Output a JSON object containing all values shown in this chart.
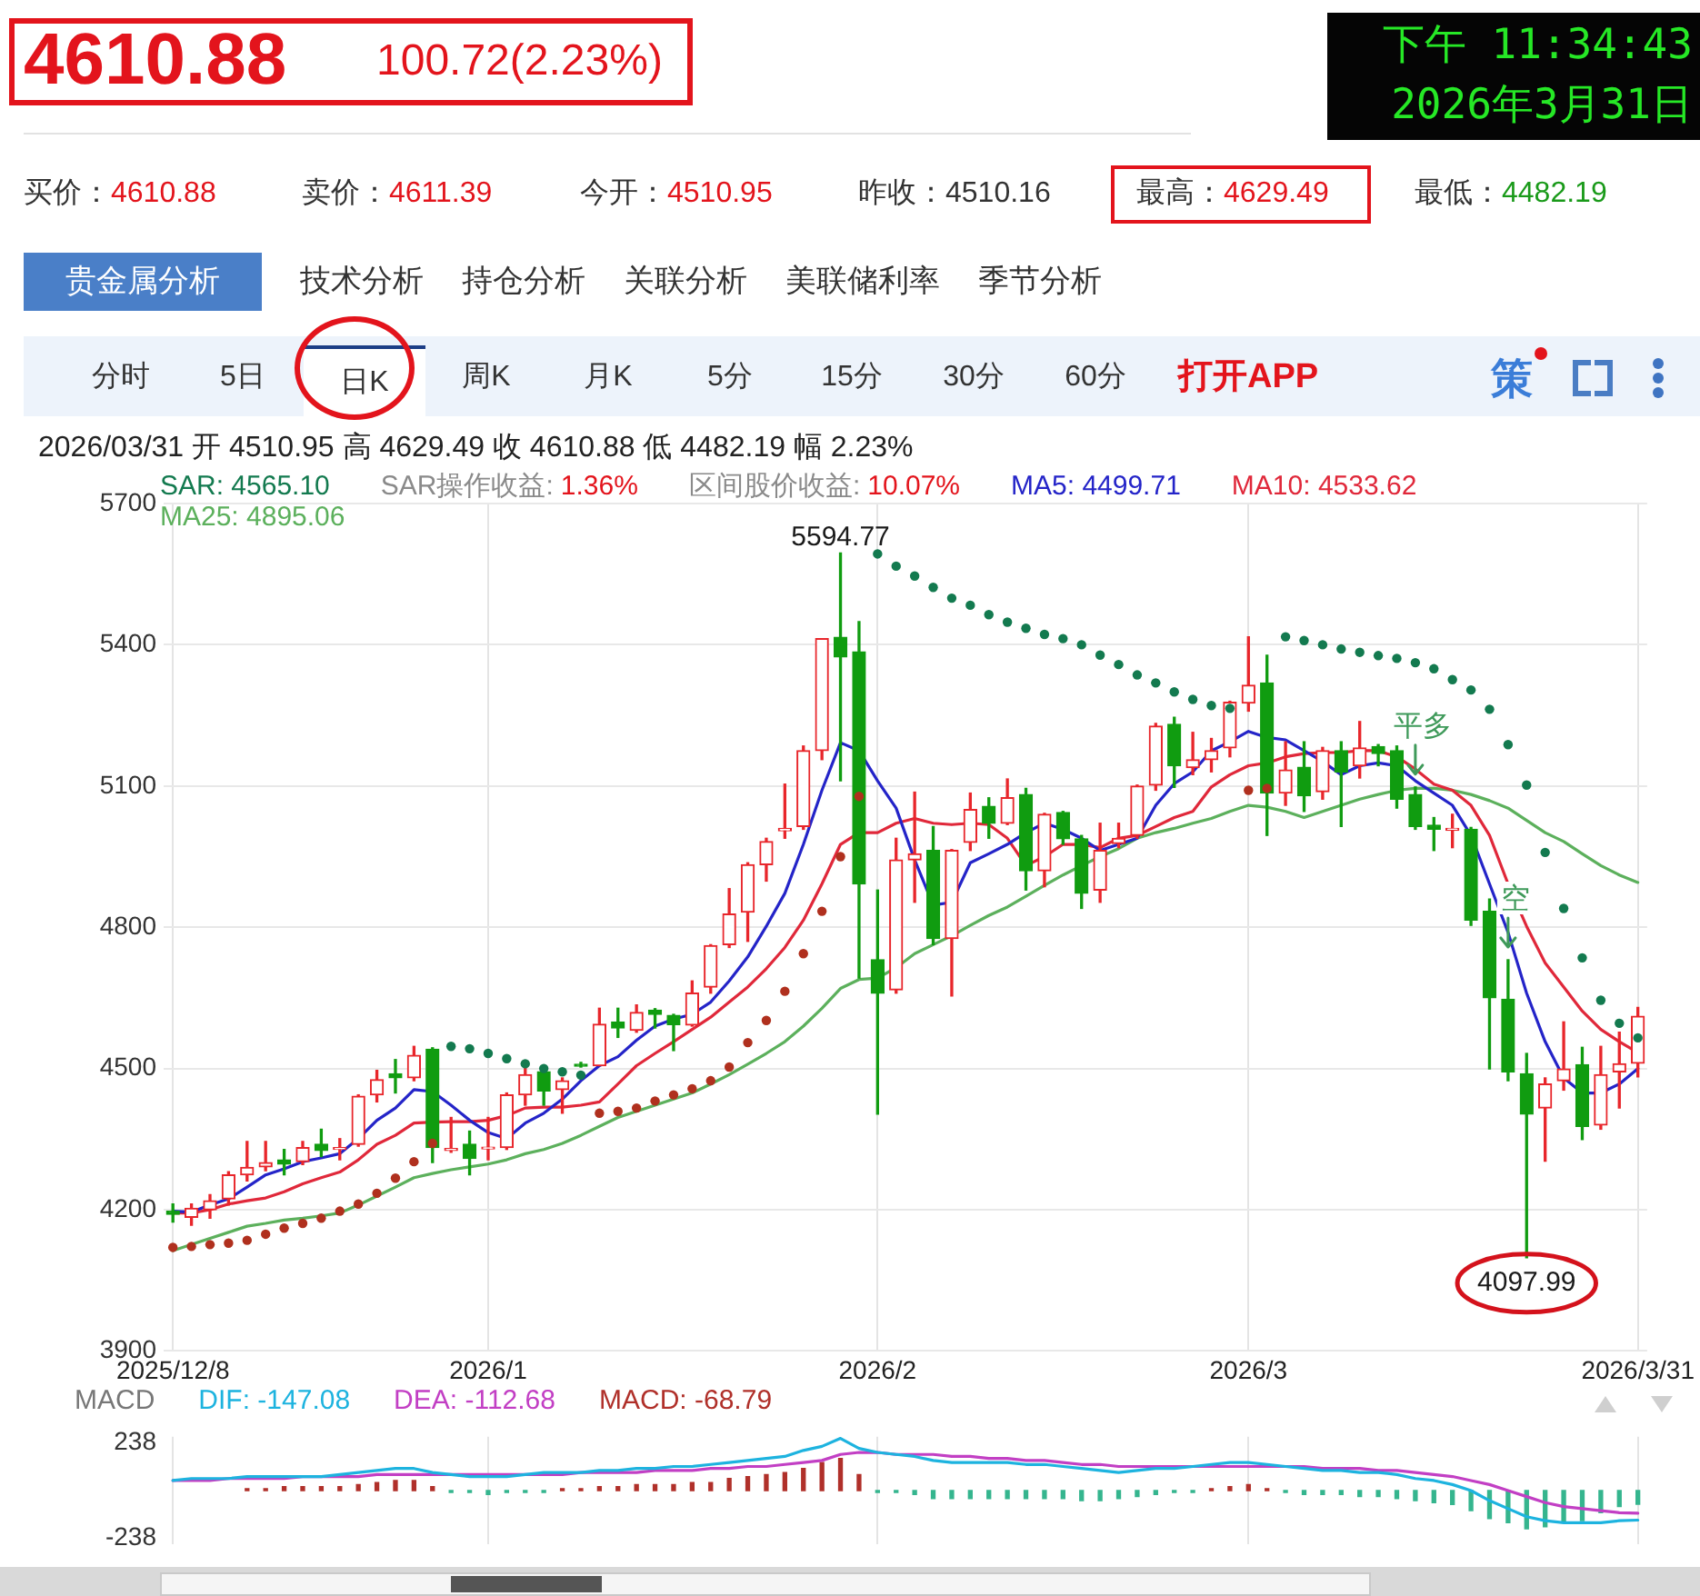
{
  "chart_data": [
    {
      "type": "other",
      "title": "4610.88",
      "subtitle": "100.72(2.23%)",
      "annotations": [
        "下午 11:34:43",
        "2026年3月31日"
      ]
    },
    {
      "type": "other",
      "annotations": [
        "买价：",
        "4610.88",
        "卖价：",
        "4611.39",
        "今开：",
        "4510.95",
        "昨收：",
        "4510.16",
        "最高：",
        "4629.49",
        "最低：",
        "4482.19"
      ],
      "colors": [
        "#e3141c",
        "#e3141c",
        "#e3141c",
        "#333333",
        "#e3141c",
        "#1a9a1a"
      ]
    },
    {
      "type": "other",
      "annotations": [
        "贵金属分析",
        "技术分析",
        "持仓分析",
        "关联分析",
        "美联储利率",
        "季节分析"
      ]
    },
    {
      "type": "other",
      "annotations": [
        "分时",
        "5日",
        "日K",
        "周K",
        "月K",
        "5分",
        "15分",
        "30分",
        "60分",
        "打开APP",
        "策"
      ]
    },
    {
      "type": "candlestick",
      "title": "2026/03/31 开 4510.95 高 4629.49 收 4610.88 低 4482.19 幅 2.23%",
      "categories": [
        "2025/12/8",
        null,
        null,
        null,
        null,
        null,
        null,
        null,
        null,
        null,
        null,
        null,
        null,
        null,
        null,
        null,
        null,
        "2026/1",
        null,
        null,
        null,
        null,
        null,
        null,
        null,
        null,
        null,
        null,
        null,
        null,
        null,
        null,
        null,
        null,
        null,
        null,
        null,
        null,
        "2026/2",
        null,
        null,
        null,
        null,
        null,
        null,
        null,
        null,
        null,
        null,
        null,
        null,
        null,
        null,
        null,
        null,
        null,
        null,
        null,
        "2026/3",
        null,
        null,
        null,
        null,
        null,
        null,
        null,
        null,
        null,
        null,
        null,
        null,
        null,
        null,
        null,
        null,
        null,
        null,
        null,
        null,
        "2026/3/31"
      ],
      "ohlc": [
        [
          4197,
          4212,
          4174,
          4190
        ],
        [
          4184,
          4212,
          4167,
          4203
        ],
        [
          4200,
          4232,
          4182,
          4219
        ],
        [
          4223,
          4281,
          4210,
          4274
        ],
        [
          4274,
          4345,
          4261,
          4290
        ],
        [
          4291,
          4345,
          4283,
          4300
        ],
        [
          4306,
          4328,
          4274,
          4297
        ],
        [
          4302,
          4345,
          4296,
          4332
        ],
        [
          4339,
          4371,
          4313,
          4326
        ],
        [
          4328,
          4351,
          4306,
          4332
        ],
        [
          4339,
          4444,
          4335,
          4441
        ],
        [
          4444,
          4496,
          4429,
          4476
        ],
        [
          4489,
          4519,
          4448,
          4480
        ],
        [
          4480,
          4547,
          4474,
          4528
        ],
        [
          4541,
          4544,
          4300,
          4332
        ],
        [
          4326,
          4396,
          4322,
          4330
        ],
        [
          4339,
          4367,
          4274,
          4309
        ],
        [
          4329,
          4396,
          4306,
          4333
        ],
        [
          4332,
          4448,
          4328,
          4444
        ],
        [
          4444,
          4500,
          4422,
          4487
        ],
        [
          4493,
          4500,
          4422,
          4452
        ],
        [
          4455,
          4480,
          4405,
          4474
        ],
        [
          4509,
          4513,
          4503,
          4505
        ],
        [
          4506,
          4628,
          4506,
          4594
        ],
        [
          4599,
          4628,
          4566,
          4586
        ],
        [
          4581,
          4635,
          4577,
          4619
        ],
        [
          4624,
          4627,
          4586,
          4615
        ],
        [
          4613,
          4615,
          4538,
          4593
        ],
        [
          4592,
          4686,
          4590,
          4660
        ],
        [
          4673,
          4763,
          4660,
          4761
        ],
        [
          4763,
          4882,
          4757,
          4828
        ],
        [
          4832,
          4937,
          4770,
          4933
        ],
        [
          4933,
          4989,
          4898,
          4982
        ],
        [
          5005,
          5104,
          4989,
          5010
        ],
        [
          5014,
          5185,
          5008,
          5175
        ],
        [
          5175,
          5413,
          5156,
          5413
        ],
        [
          5416,
          5594.77,
          5111,
          5374
        ],
        [
          5385,
          5449,
          4692,
          4892
        ],
        [
          4731,
          4879,
          4403,
          4660
        ],
        [
          4667,
          4989,
          4660,
          4943
        ],
        [
          4943,
          5087,
          4853,
          4956
        ],
        [
          4963,
          5014,
          4763,
          4776
        ],
        [
          4776,
          4965,
          4654,
          4963
        ],
        [
          4980,
          5085,
          4963,
          5050
        ],
        [
          5057,
          5075,
          4989,
          5021
        ],
        [
          5021,
          5115,
          5018,
          5075
        ],
        [
          5082,
          5095,
          4879,
          4920
        ],
        [
          4920,
          5042,
          4886,
          5040
        ],
        [
          5044,
          5046,
          4976,
          4988
        ],
        [
          4988,
          4995,
          4840,
          4872
        ],
        [
          4879,
          5021,
          4853,
          4963
        ],
        [
          4978,
          5021,
          4969,
          4989
        ],
        [
          4995,
          5102,
          4989,
          5100
        ],
        [
          5102,
          5233,
          5091,
          5227
        ],
        [
          5231,
          5246,
          5097,
          5143
        ],
        [
          5139,
          5214,
          5124,
          5156
        ],
        [
          5156,
          5201,
          5130,
          5175
        ],
        [
          5181,
          5280,
          5162,
          5278
        ],
        [
          5276,
          5417,
          5259,
          5314
        ],
        [
          5319,
          5378,
          4995,
          5085
        ],
        [
          5085,
          5194,
          5059,
          5134
        ],
        [
          5140,
          5194,
          5046,
          5079
        ],
        [
          5088,
          5182,
          5072,
          5175
        ],
        [
          5175,
          5194,
          5014,
          5130
        ],
        [
          5143,
          5237,
          5117,
          5181
        ],
        [
          5184,
          5188,
          5143,
          5169
        ],
        [
          5175,
          5185,
          5053,
          5072
        ],
        [
          5082,
          5098,
          5008,
          5014
        ],
        [
          5017,
          5033,
          4963,
          5008
        ],
        [
          5006,
          5040,
          4969,
          5010
        ],
        [
          5008,
          5012,
          4804,
          4815
        ],
        [
          4834,
          4860,
          4499,
          4650
        ],
        [
          4647,
          4731,
          4474,
          4493
        ],
        [
          4489,
          4532,
          4097.99,
          4403
        ],
        [
          4416,
          4480,
          4303,
          4467
        ],
        [
          4474,
          4599,
          4454,
          4499
        ],
        [
          4508,
          4545,
          4349,
          4377
        ],
        [
          4380,
          4547,
          4371,
          4487
        ],
        [
          4493,
          4577,
          4416,
          4510
        ],
        [
          4510.95,
          4629.49,
          4482.19,
          4610.88
        ]
      ],
      "colors": [
        "#109c10",
        "#e8262b",
        "#e8262b",
        "#e8262b",
        "#e8262b",
        "#e8262b",
        "#109c10",
        "#e8262b",
        "#109c10",
        "#e8262b",
        "#e8262b",
        "#e8262b",
        "#109c10",
        "#e8262b",
        "#109c10",
        "#e8262b",
        "#109c10",
        "#e8262b",
        "#e8262b",
        "#e8262b",
        "#109c10",
        "#e8262b",
        "#109c10",
        "#e8262b",
        "#109c10",
        "#e8262b",
        "#109c10",
        "#109c10",
        "#e8262b",
        "#e8262b",
        "#e8262b",
        "#e8262b",
        "#e8262b",
        "#e8262b",
        "#e8262b",
        "#e8262b",
        "#109c10",
        "#109c10",
        "#109c10",
        "#e8262b",
        "#e8262b",
        "#109c10",
        "#e8262b",
        "#e8262b",
        "#109c10",
        "#e8262b",
        "#109c10",
        "#e8262b",
        "#109c10",
        "#109c10",
        "#e8262b",
        "#e8262b",
        "#e8262b",
        "#e8262b",
        "#109c10",
        "#e8262b",
        "#e8262b",
        "#e8262b",
        "#e8262b",
        "#109c10",
        "#e8262b",
        "#109c10",
        "#e8262b",
        "#109c10",
        "#e8262b",
        "#109c10",
        "#109c10",
        "#109c10",
        "#109c10",
        "#e8262b",
        "#109c10",
        "#109c10",
        "#109c10",
        "#109c10",
        "#e8262b",
        "#e8262b",
        "#109c10",
        "#e8262b",
        "#e8262b",
        "#e8262b"
      ],
      "series": [
        {
          "name": "SAR: 4565.10",
          "type": "scatter",
          "colors": [
            "#b0301e",
            "#b0301e",
            "#b0301e",
            "#b0301e",
            "#b0301e",
            "#b0301e",
            "#b0301e",
            "#b0301e",
            "#b0301e",
            "#b0301e",
            "#b0301e",
            "#b0301e",
            "#b0301e",
            "#b0301e",
            "#b0301e",
            "#137a4f",
            "#137a4f",
            "#137a4f",
            "#137a4f",
            "#137a4f",
            "#137a4f",
            "#137a4f",
            "#137a4f",
            "#b0301e",
            "#b0301e",
            "#b0301e",
            "#b0301e",
            "#b0301e",
            "#b0301e",
            "#b0301e",
            "#b0301e",
            "#b0301e",
            "#b0301e",
            "#b0301e",
            "#b0301e",
            "#b0301e",
            "#b0301e",
            "#b0301e",
            "#137a4f",
            "#137a4f",
            "#137a4f",
            "#137a4f",
            "#137a4f",
            "#137a4f",
            "#137a4f",
            "#137a4f",
            "#137a4f",
            "#137a4f",
            "#137a4f",
            "#137a4f",
            "#137a4f",
            "#137a4f",
            "#137a4f",
            "#137a4f",
            "#137a4f",
            "#137a4f",
            "#137a4f",
            "#137a4f",
            "#b0301e",
            "#b0301e",
            "#137a4f",
            "#137a4f",
            "#137a4f",
            "#137a4f",
            "#137a4f",
            "#137a4f",
            "#137a4f",
            "#137a4f",
            "#137a4f",
            "#137a4f",
            "#137a4f",
            "#137a4f",
            "#137a4f",
            "#137a4f",
            "#137a4f",
            "#137a4f",
            "#137a4f",
            "#137a4f",
            "#137a4f",
            "#137a4f"
          ],
          "values": [
            4120,
            4122,
            4126,
            4129,
            4135,
            4148,
            4161,
            4171,
            4182,
            4197,
            4212,
            4235,
            4267,
            4302,
            4341,
            4547,
            4542,
            4532,
            4521,
            4510,
            4500,
            4493,
            4486,
            4405,
            4409,
            4416,
            4431,
            4444,
            4457,
            4474,
            4503,
            4555,
            4602,
            4664,
            4744,
            4834,
            4950,
            5078,
            5593,
            5567,
            5546,
            5522,
            5499,
            5484,
            5464,
            5448,
            5435,
            5422,
            5413,
            5400,
            5378,
            5358,
            5336,
            5319,
            5300,
            5284,
            5271,
            5265,
            5091,
            5095,
            5417,
            5409,
            5400,
            5391,
            5384,
            5377,
            5371,
            5362,
            5349,
            5326,
            5304,
            5263,
            5188,
            5102,
            4959,
            4840,
            4735,
            4645,
            4596,
            4565.1
          ]
        },
        {
          "name": "MA5: 4499.71",
          "type": "line",
          "color": "#2424c8",
          "values": [
            4197,
            4195,
            4210,
            4223,
            4248,
            4274,
            4287,
            4302,
            4310,
            4319,
            4351,
            4390,
            4416,
            4455,
            4451,
            4422,
            4390,
            4364,
            4351,
            4384,
            4405,
            4435,
            4474,
            4506,
            4525,
            4560,
            4590,
            4605,
            4615,
            4641,
            4686,
            4737,
            4802,
            4872,
            4976,
            5091,
            5192,
            5175,
            5111,
            5053,
            4943,
            4847,
            4853,
            4937,
            4956,
            4976,
            5001,
            5021,
            5008,
            4989,
            4963,
            4976,
            4989,
            5059,
            5105,
            5130,
            5175,
            5194,
            5216,
            5203,
            5198,
            5175,
            5152,
            5124,
            5143,
            5149,
            5143,
            5111,
            5085,
            5059,
            4995,
            4892,
            4789,
            4660,
            4557,
            4480,
            4448,
            4448,
            4467,
            4499.71
          ]
        },
        {
          "name": "MA10: 4533.62",
          "type": "line",
          "color": "#e0283a",
          "values": [
            4193,
            4193,
            4200,
            4212,
            4219,
            4225,
            4238,
            4255,
            4268,
            4280,
            4306,
            4339,
            4358,
            4384,
            4386,
            4387,
            4387,
            4390,
            4400,
            4416,
            4418,
            4418,
            4422,
            4429,
            4467,
            4506,
            4532,
            4557,
            4583,
            4609,
            4641,
            4673,
            4712,
            4757,
            4815,
            4892,
            4976,
            5001,
            5001,
            5021,
            5031,
            5021,
            5018,
            5021,
            5018,
            4989,
            4931,
            4950,
            4976,
            4976,
            4969,
            4989,
            4995,
            5014,
            5033,
            5046,
            5098,
            5124,
            5143,
            5149,
            5162,
            5169,
            5171,
            5171,
            5175,
            5175,
            5162,
            5136,
            5104,
            5091,
            5059,
            4995,
            4892,
            4802,
            4724,
            4673,
            4622,
            4583,
            4557,
            4533.62
          ]
        },
        {
          "name": "MA25: 4895.06",
          "type": "line",
          "color": "#5cb05c",
          "values": [
            4113,
            4126,
            4139,
            4152,
            4165,
            4171,
            4178,
            4182,
            4187,
            4193,
            4210,
            4229,
            4248,
            4268,
            4277,
            4285,
            4291,
            4297,
            4306,
            4319,
            4328,
            4341,
            4358,
            4377,
            4396,
            4409,
            4422,
            4435,
            4448,
            4467,
            4487,
            4509,
            4532,
            4557,
            4590,
            4628,
            4670,
            4689,
            4692,
            4714,
            4744,
            4763,
            4782,
            4804,
            4825,
            4843,
            4866,
            4889,
            4911,
            4931,
            4950,
            4967,
            4989,
            5001,
            5010,
            5021,
            5031,
            5046,
            5059,
            5055,
            5046,
            5033,
            5046,
            5059,
            5072,
            5082,
            5091,
            5095,
            5095,
            5091,
            5082,
            5069,
            5053,
            5027,
            5001,
            4982,
            4956,
            4931,
            4911,
            4895.06
          ]
        }
      ],
      "annotations": [
        "SAR操作收益:",
        "1.36%",
        "区间股价收益:",
        "10.07%",
        {
          "text": "5594.77",
          "y": 5594.77
        },
        {
          "text": "4097.99",
          "y": 4097.99
        },
        {
          "text": "平多",
          "y": 5098
        },
        {
          "text": "空",
          "y": 4731
        }
      ],
      "ylim": [
        3900,
        5700
      ],
      "yticks": [
        3900,
        4200,
        4500,
        4800,
        5100,
        5400,
        5700
      ],
      "grid": true,
      "legend": "top left"
    },
    {
      "type": "bar",
      "title": "MACD",
      "categories": [
        "2025/12/8",
        null,
        null,
        null,
        null,
        null,
        null,
        null,
        null,
        null,
        null,
        null,
        null,
        null,
        null,
        null,
        null,
        "2026/1",
        null,
        null,
        null,
        null,
        null,
        null,
        null,
        null,
        null,
        null,
        null,
        null,
        null,
        null,
        null,
        null,
        null,
        null,
        null,
        null,
        "2026/2",
        null,
        null,
        null,
        null,
        null,
        null,
        null,
        null,
        null,
        null,
        null,
        null,
        null,
        null,
        null,
        null,
        null,
        null,
        null,
        "2026/3",
        null,
        null,
        null,
        null,
        null,
        null,
        null,
        null,
        null,
        null,
        null,
        null,
        null,
        null,
        null,
        null,
        null,
        null,
        null,
        null,
        "2026/3/31"
      ],
      "series": [
        {
          "name": "DIF: -147.08",
          "type": "line",
          "color": "#1db3df",
          "values": [
            50,
            60,
            60,
            60,
            70,
            70,
            70,
            70,
            70,
            80,
            90,
            100,
            110,
            110,
            90,
            80,
            70,
            70,
            70,
            80,
            90,
            90,
            90,
            100,
            100,
            110,
            110,
            120,
            120,
            130,
            140,
            150,
            160,
            170,
            200,
            220,
            260,
            210,
            190,
            180,
            170,
            150,
            140,
            140,
            140,
            140,
            130,
            130,
            120,
            110,
            100,
            90,
            100,
            110,
            110,
            120,
            130,
            140,
            140,
            130,
            120,
            110,
            100,
            100,
            90,
            90,
            80,
            60,
            50,
            30,
            0,
            -50,
            -90,
            -130,
            -150,
            -160,
            -160,
            -160,
            -150,
            -147.08
          ]
        },
        {
          "name": "DEA: -112.68",
          "type": "line",
          "color": "#c23fc4",
          "values": [
            50,
            50,
            50,
            60,
            60,
            60,
            60,
            70,
            70,
            70,
            70,
            80,
            80,
            80,
            80,
            80,
            80,
            80,
            80,
            80,
            80,
            80,
            90,
            90,
            90,
            90,
            100,
            100,
            100,
            110,
            110,
            120,
            120,
            130,
            140,
            150,
            180,
            190,
            190,
            180,
            180,
            180,
            170,
            170,
            160,
            160,
            150,
            150,
            140,
            130,
            130,
            120,
            120,
            120,
            120,
            120,
            120,
            120,
            120,
            120,
            120,
            120,
            110,
            110,
            110,
            100,
            100,
            90,
            80,
            70,
            50,
            30,
            0,
            -30,
            -60,
            -80,
            -90,
            -100,
            -110,
            -112.68
          ]
        },
        {
          "name": "MACD: -68.79",
          "type": "bar",
          "color": "#b0302a",
          "colors": [
            "#b0302a",
            "#b0302a",
            "#b0302a",
            "#b0302a",
            "#b0302a",
            "#b0302a",
            "#b0302a",
            "#b0302a",
            "#b0302a",
            "#b0302a",
            "#b0302a",
            "#b0302a",
            "#b0302a",
            "#b0302a",
            "#b0302a",
            "#35b58e",
            "#35b58e",
            "#35b58e",
            "#35b58e",
            "#35b58e",
            "#35b58e",
            "#b0302a",
            "#b0302a",
            "#b0302a",
            "#b0302a",
            "#b0302a",
            "#b0302a",
            "#b0302a",
            "#b0302a",
            "#b0302a",
            "#b0302a",
            "#b0302a",
            "#b0302a",
            "#b0302a",
            "#b0302a",
            "#b0302a",
            "#b0302a",
            "#b0302a",
            "#35b58e",
            "#35b58e",
            "#35b58e",
            "#35b58e",
            "#35b58e",
            "#35b58e",
            "#35b58e",
            "#35b58e",
            "#35b58e",
            "#35b58e",
            "#35b58e",
            "#35b58e",
            "#35b58e",
            "#35b58e",
            "#35b58e",
            "#35b58e",
            "#35b58e",
            "#35b58e",
            "#b0302a",
            "#b0302a",
            "#b0302a",
            "#b0302a",
            "#35b58e",
            "#35b58e",
            "#35b58e",
            "#35b58e",
            "#35b58e",
            "#35b58e",
            "#35b58e",
            "#35b58e",
            "#35b58e",
            "#35b58e",
            "#35b58e",
            "#35b58e",
            "#35b58e",
            "#35b58e",
            "#35b58e",
            "#35b58e",
            "#35b58e",
            "#35b58e",
            "#35b58e",
            "#35b58e"
          ],
          "values": [
            null,
            null,
            null,
            null,
            10,
            10,
            20,
            20,
            20,
            20,
            30,
            40,
            50,
            50,
            20,
            -10,
            -10,
            -20,
            -10,
            -10,
            -10,
            10,
            10,
            20,
            20,
            30,
            30,
            30,
            40,
            40,
            60,
            70,
            80,
            90,
            110,
            140,
            160,
            80,
            -10,
            -10,
            -20,
            -40,
            -40,
            -40,
            -40,
            -40,
            -40,
            -40,
            -40,
            -50,
            -50,
            -40,
            -30,
            -20,
            -10,
            -10,
            10,
            20,
            30,
            10,
            -10,
            -20,
            -20,
            -20,
            -30,
            -30,
            -40,
            -50,
            -60,
            -70,
            -100,
            -140,
            -160,
            -190,
            -180,
            -160,
            -150,
            -110,
            -80,
            -68.79
          ]
        }
      ],
      "ylim": [
        -268,
        268
      ],
      "yticks": [
        -238,
        238
      ],
      "grid": "x",
      "tick_labels": "y",
      "legend": "top left"
    }
  ]
}
